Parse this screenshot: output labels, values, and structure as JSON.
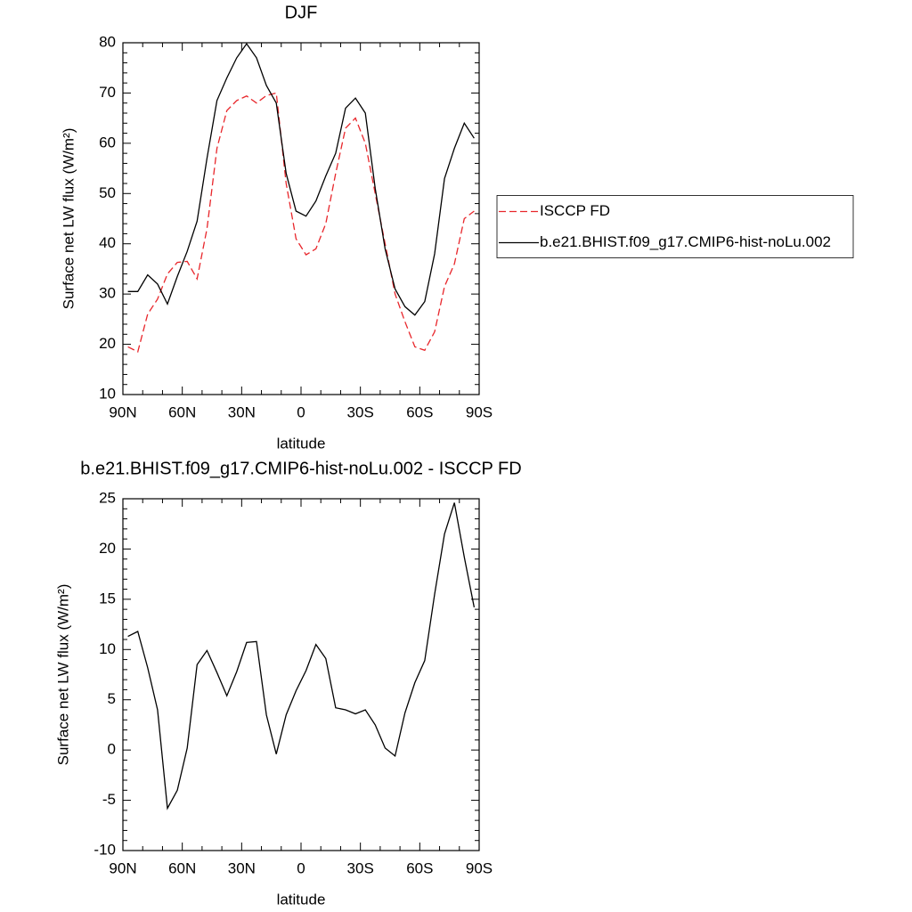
{
  "chart_data": [
    {
      "type": "line",
      "title": "DJF",
      "xlabel": "latitude",
      "ylabel": "Surface net LW flux (W/m²)",
      "x": [
        87.5,
        82.5,
        77.5,
        72.5,
        67.5,
        62.5,
        57.5,
        52.5,
        47.5,
        42.5,
        37.5,
        32.5,
        27.5,
        22.5,
        17.5,
        12.5,
        7.5,
        2.5,
        -2.5,
        -7.5,
        -12.5,
        -17.5,
        -22.5,
        -27.5,
        -32.5,
        -37.5,
        -42.5,
        -47.5,
        -52.5,
        -57.5,
        -62.5,
        -67.5,
        -72.5,
        -77.5,
        -82.5,
        -87.5
      ],
      "series": [
        {
          "name": "ISCCP FD",
          "color": "#e8262b",
          "style": "dashed",
          "values": [
            19.5,
            18.5,
            26,
            29,
            34,
            36.3,
            36.5,
            33,
            43,
            59,
            66.5,
            68.5,
            69.4,
            68,
            69.5,
            70,
            52,
            41,
            37.8,
            39,
            44,
            54,
            63,
            65,
            60,
            50,
            40,
            30,
            24.5,
            19.5,
            18.8,
            22.5,
            31.5,
            36,
            45,
            46.5
          ]
        },
        {
          "name": "b.e21.BHIST.f09_g17.CMIP6-hist-noLu.002",
          "color": "#000000",
          "style": "solid",
          "values": [
            30.5,
            30.5,
            33.8,
            32,
            28,
            33.5,
            38.5,
            44.5,
            57,
            68.5,
            73,
            77,
            79.8,
            77,
            71.5,
            68,
            54,
            46.5,
            45.5,
            48.5,
            53.5,
            58,
            67,
            69,
            66,
            51,
            39,
            31,
            27.5,
            25.8,
            28.5,
            38,
            53,
            59,
            64,
            61
          ]
        }
      ],
      "xlim": [
        90,
        -90
      ],
      "xticks": [
        {
          "value": 90,
          "label": "90N"
        },
        {
          "value": 60,
          "label": "60N"
        },
        {
          "value": 30,
          "label": "30N"
        },
        0,
        {
          "value": -30,
          "label": "30S"
        },
        {
          "value": -60,
          "label": "60S"
        },
        {
          "value": -90,
          "label": "90S"
        }
      ],
      "ylim": [
        10,
        80
      ],
      "yticks": [
        10,
        20,
        30,
        40,
        50,
        60,
        70,
        80
      ],
      "legend": "right",
      "grid": false
    },
    {
      "type": "line",
      "title": "b.e21.BHIST.f09_g17.CMIP6-hist-noLu.002 - ISCCP FD",
      "xlabel": "latitude",
      "ylabel": "Surface net LW flux (W/m²)",
      "x": [
        87.5,
        82.5,
        77.5,
        72.5,
        67.5,
        62.5,
        57.5,
        52.5,
        47.5,
        42.5,
        37.5,
        32.5,
        27.5,
        22.5,
        17.5,
        12.5,
        7.5,
        2.5,
        -2.5,
        -7.5,
        -12.5,
        -17.5,
        -22.5,
        -27.5,
        -32.5,
        -37.5,
        -42.5,
        -47.5,
        -52.5,
        -57.5,
        -62.5,
        -67.5,
        -72.5,
        -77.5,
        -82.5,
        -87.5
      ],
      "values": [
        11.3,
        11.8,
        8.2,
        4,
        -5.8,
        -4,
        0.2,
        8.5,
        9.9,
        7.7,
        5.4,
        7.8,
        10.7,
        10.8,
        3.5,
        -0.4,
        3.5,
        5.9,
        7.9,
        10.5,
        9.1,
        4.2,
        4,
        3.6,
        4,
        2.5,
        0.2,
        -0.6,
        3.7,
        6.7,
        8.9,
        15.5,
        21.5,
        24.6,
        19.2,
        14.2
      ],
      "color": "#000000",
      "xlim": [
        90,
        -90
      ],
      "xticks": [
        {
          "value": 90,
          "label": "90N"
        },
        {
          "value": 60,
          "label": "60N"
        },
        {
          "value": 30,
          "label": "30N"
        },
        0,
        {
          "value": -30,
          "label": "30S"
        },
        {
          "value": -60,
          "label": "60S"
        },
        {
          "value": -90,
          "label": "90S"
        }
      ],
      "ylim": [
        -10,
        25
      ],
      "yticks": [
        -10,
        -5,
        0,
        5,
        10,
        15,
        20,
        25
      ],
      "grid": false
    }
  ]
}
